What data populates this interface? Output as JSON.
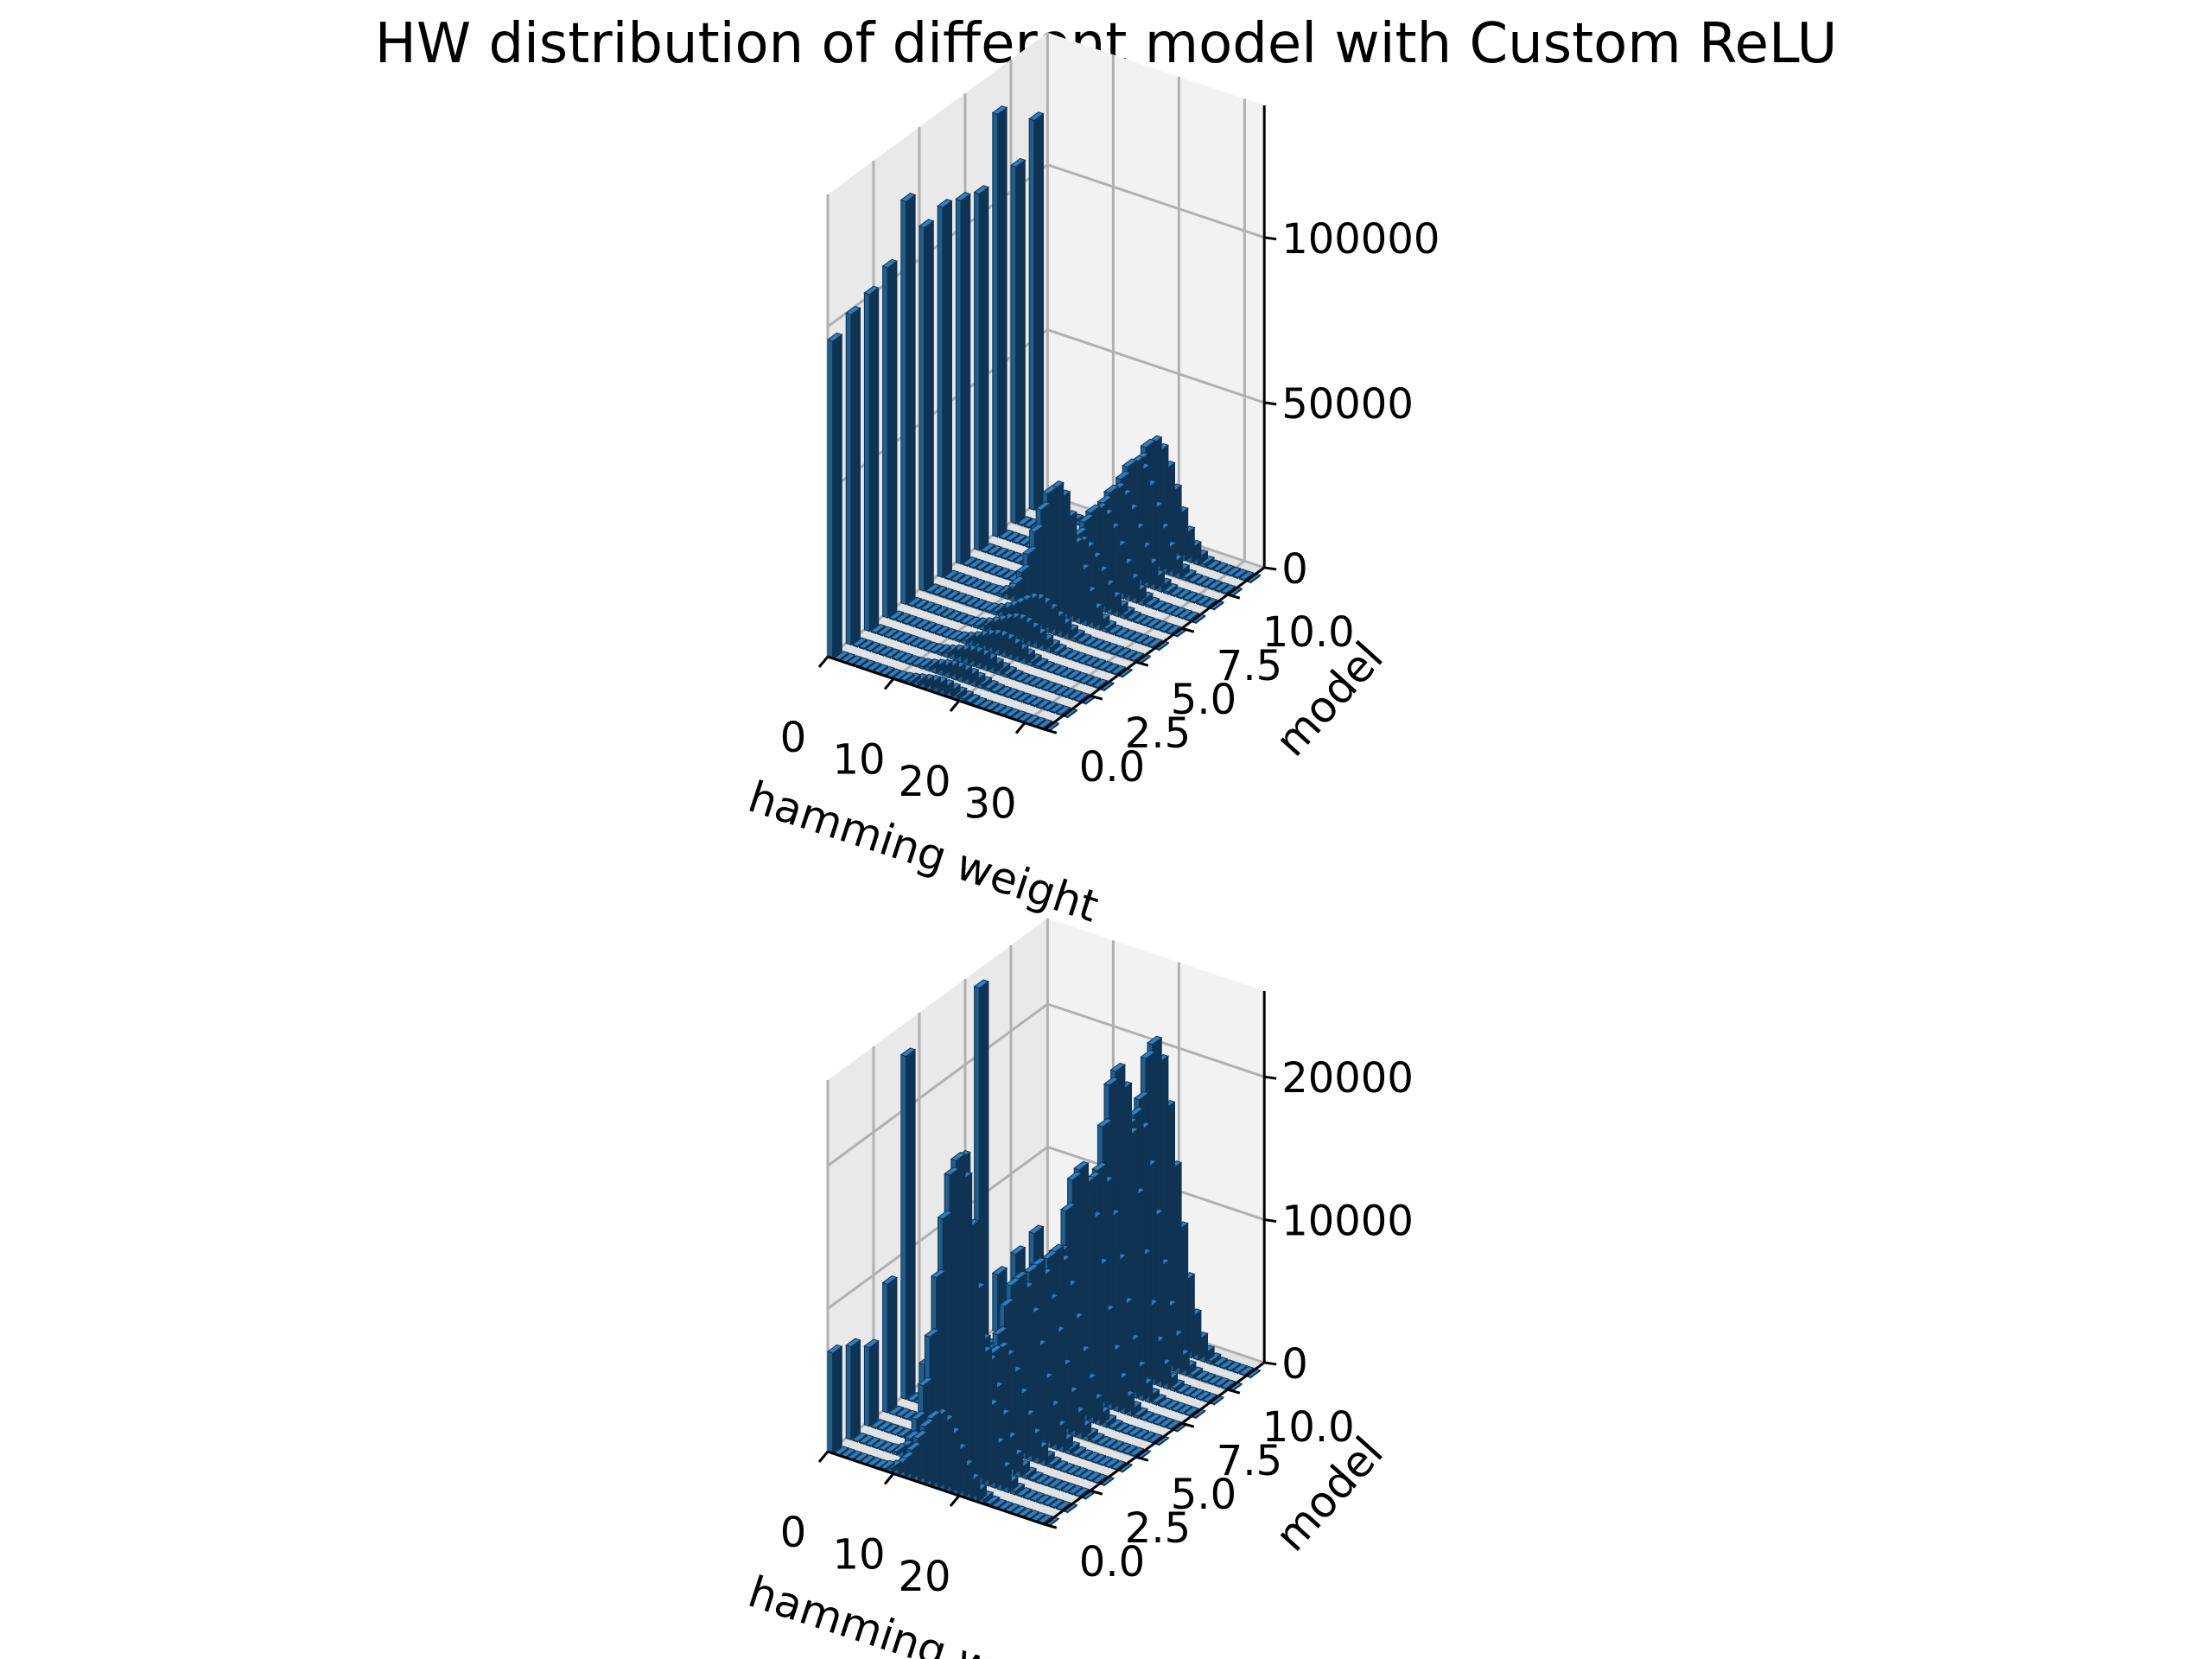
{
  "title": "HW distribution of different model with Custom ReLU",
  "chart_data": [
    {
      "type": "bar3d",
      "panel": "top",
      "xlabel": "hamming weight",
      "ylabel": "model",
      "zlabel": "",
      "xticks": [
        "0",
        "10",
        "20",
        "30"
      ],
      "yticks": [
        "0.0",
        "2.5",
        "5.0",
        "7.5",
        "10.0"
      ],
      "zticks": [
        "0",
        "50000",
        "100000"
      ],
      "xlim": [
        0,
        33
      ],
      "ylim": [
        0,
        12
      ],
      "zlim": [
        0,
        140000
      ],
      "grid": true,
      "hw_bins": [
        0,
        33
      ],
      "models": [
        {
          "model": 0,
          "hw0": 96000,
          "peak_hw": 16,
          "peak": 2500
        },
        {
          "model": 1,
          "hw0": 100000,
          "peak_hw": 16,
          "peak": 3000
        },
        {
          "model": 2,
          "hw0": 102000,
          "peak_hw": 16,
          "peak": 3500
        },
        {
          "model": 3,
          "hw0": 106000,
          "peak_hw": 17,
          "peak": 5000
        },
        {
          "model": 4,
          "hw0": 122000,
          "peak_hw": 17,
          "peak": 6000
        },
        {
          "model": 5,
          "hw0": 110000,
          "peak_hw": 17,
          "peak": 8000
        },
        {
          "model": 6,
          "hw0": 112000,
          "peak_hw": 17,
          "peak": 38000
        },
        {
          "model": 7,
          "hw0": 110000,
          "peak_hw": 18,
          "peak": 18000
        },
        {
          "model": 8,
          "hw0": 108000,
          "peak_hw": 18,
          "peak": 24000
        },
        {
          "model": 9,
          "hw0": 128000,
          "peak_hw": 18,
          "peak": 26000
        },
        {
          "model": 10,
          "hw0": 108000,
          "peak_hw": 18,
          "peak": 30000
        },
        {
          "model": 11,
          "hw0": 118000,
          "peak_hw": 18,
          "peak": 32000
        }
      ]
    },
    {
      "type": "bar3d",
      "panel": "bottom",
      "xlabel": "hamming weight",
      "ylabel": "model",
      "zlabel": "",
      "xticks": [
        "0",
        "10",
        "20"
      ],
      "yticks": [
        "0.0",
        "2.5",
        "5.0",
        "7.5",
        "10.0"
      ],
      "zticks": [
        "0",
        "10000",
        "20000"
      ],
      "xlim": [
        0,
        33
      ],
      "ylim": [
        0,
        12
      ],
      "zlim": [
        0,
        26000
      ],
      "grid": true,
      "models": [
        {
          "model": 0,
          "hw0": 7000,
          "peak_hw": 16,
          "peak": 5000
        },
        {
          "model": 1,
          "hw0": 6500,
          "peak_hw": 16,
          "peak": 22000
        },
        {
          "model": 2,
          "hw0": 5500,
          "peak_hw": 16,
          "peak": 9000
        },
        {
          "model": 3,
          "hw0": 9000,
          "peak_hw": 17,
          "peak": 7000
        },
        {
          "model": 4,
          "hw0": 24000,
          "peak_hw": 17,
          "peak": 11000
        },
        {
          "model": 5,
          "hw0": 1500,
          "peak_hw": 17,
          "peak": 11000
        },
        {
          "model": 6,
          "hw0": 1000,
          "peak_hw": 17,
          "peak": 11000
        },
        {
          "model": 7,
          "hw0": 14000,
          "peak_hw": 18,
          "peak": 16000
        },
        {
          "model": 8,
          "hw0": 25000,
          "peak_hw": 18,
          "peak": 15000
        },
        {
          "model": 9,
          "hw0": 4000,
          "peak_hw": 18,
          "peak": 21000
        },
        {
          "model": 10,
          "hw0": 4500,
          "peak_hw": 18,
          "peak": 17000
        },
        {
          "model": 11,
          "hw0": 5000,
          "peak_hw": 18,
          "peak": 21000
        }
      ]
    }
  ],
  "colors": {
    "bar_top": "#2e7fbf",
    "bar_side": "#1f5f8f",
    "bar_dark": "#0f3352",
    "pane_back": "#f2f2f2",
    "pane_side": "#e9e9e9",
    "pane_floor": "#e2e2e2",
    "grid": "#b0b0b0"
  }
}
